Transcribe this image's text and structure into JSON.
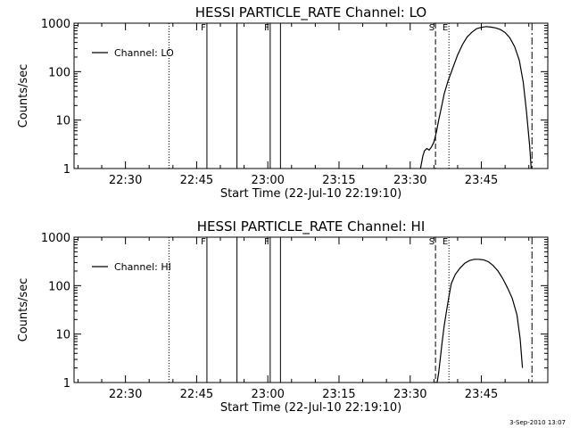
{
  "chart_data": [
    {
      "type": "line",
      "title": "HESSI PARTICLE_RATE Channel: LO",
      "xlabel": "Start Time (22-Jul-10 22:19:10)",
      "ylabel": "Counts/sec",
      "yscale": "log",
      "xlim": [
        "22:19:10",
        "23:59:00"
      ],
      "ylim": [
        1,
        1000
      ],
      "xticks": [
        "22:30",
        "22:45",
        "23:00",
        "23:15",
        "23:30",
        "23:45"
      ],
      "yticks": [
        "1",
        "10",
        "100",
        "1000"
      ],
      "legend": {
        "entries": [
          "Channel: LO"
        ],
        "placement": "top-left"
      },
      "series": [
        {
          "name": "Channel: LO",
          "x": [
            "23:32:10",
            "23:32:40",
            "23:33:00",
            "23:33:30",
            "23:34:00",
            "23:34:30",
            "23:35:00",
            "23:35:30",
            "23:36:00",
            "23:36:40",
            "23:37:10",
            "23:38:00",
            "23:39:00",
            "23:40:00",
            "23:41:00",
            "23:42:00",
            "23:43:00",
            "23:44:00",
            "23:45:00",
            "23:46:00",
            "23:47:00",
            "23:48:00",
            "23:49:00",
            "23:50:00",
            "23:51:00",
            "23:52:00",
            "23:53:00",
            "23:53:50",
            "23:54:30",
            "23:55:10",
            "23:55:30"
          ],
          "y": [
            1.0,
            1.8,
            2.3,
            2.6,
            2.4,
            2.8,
            3.5,
            5.5,
            10,
            20,
            35,
            65,
            120,
            220,
            360,
            520,
            650,
            770,
            820,
            850,
            830,
            800,
            740,
            640,
            500,
            330,
            170,
            60,
            15,
            3,
            1.0
          ]
        }
      ],
      "markers": [
        {
          "type": "dotted",
          "x": "22:39:10"
        },
        {
          "type": "solid",
          "x": "22:47:10",
          "label": "F"
        },
        {
          "type": "solid",
          "x": "22:53:30"
        },
        {
          "type": "solid",
          "x": "23:00:30",
          "label": "F"
        },
        {
          "type": "solid",
          "x": "23:02:40"
        },
        {
          "type": "dashed",
          "x": "23:35:20",
          "label": "S"
        },
        {
          "type": "dotted",
          "x": "23:38:10",
          "label": "E"
        },
        {
          "type": "dashdot",
          "x": "23:55:40"
        }
      ]
    },
    {
      "type": "line",
      "title": "HESSI PARTICLE_RATE Channel: HI",
      "xlabel": "Start Time (22-Jul-10 22:19:10)",
      "ylabel": "Counts/sec",
      "yscale": "log",
      "xlim": [
        "22:19:10",
        "23:59:00"
      ],
      "ylim": [
        1,
        1000
      ],
      "xticks": [
        "22:30",
        "22:45",
        "23:00",
        "23:15",
        "23:30",
        "23:45"
      ],
      "yticks": [
        "1",
        "10",
        "100",
        "1000"
      ],
      "legend": {
        "entries": [
          "Channel: HI"
        ],
        "placement": "top-left"
      },
      "series": [
        {
          "name": "Channel: HI",
          "x": [
            "23:35:40",
            "23:36:00",
            "23:36:20",
            "23:36:40",
            "23:37:10",
            "23:37:40",
            "23:38:10",
            "23:38:40",
            "23:39:30",
            "23:40:30",
            "23:41:30",
            "23:42:30",
            "23:43:30",
            "23:44:30",
            "23:45:30",
            "23:46:30",
            "23:47:30",
            "23:48:30",
            "23:49:30",
            "23:50:30",
            "23:51:30",
            "23:52:30",
            "23:53:10",
            "23:53:40"
          ],
          "y": [
            1.0,
            1.6,
            3,
            6,
            15,
            30,
            60,
            110,
            170,
            230,
            290,
            330,
            350,
            350,
            340,
            310,
            260,
            200,
            140,
            90,
            55,
            25,
            8,
            2.0
          ]
        }
      ],
      "markers": [
        {
          "type": "dotted",
          "x": "22:39:10"
        },
        {
          "type": "solid",
          "x": "22:47:10",
          "label": "F"
        },
        {
          "type": "solid",
          "x": "22:53:30"
        },
        {
          "type": "solid",
          "x": "23:00:30",
          "label": "F"
        },
        {
          "type": "solid",
          "x": "23:02:40"
        },
        {
          "type": "dashed",
          "x": "23:35:20",
          "label": "S"
        },
        {
          "type": "dotted",
          "x": "23:38:10",
          "label": "E"
        },
        {
          "type": "dashdot",
          "x": "23:55:40"
        }
      ]
    }
  ],
  "footer": {
    "timestamp": "3-Sep-2010 13:07"
  }
}
